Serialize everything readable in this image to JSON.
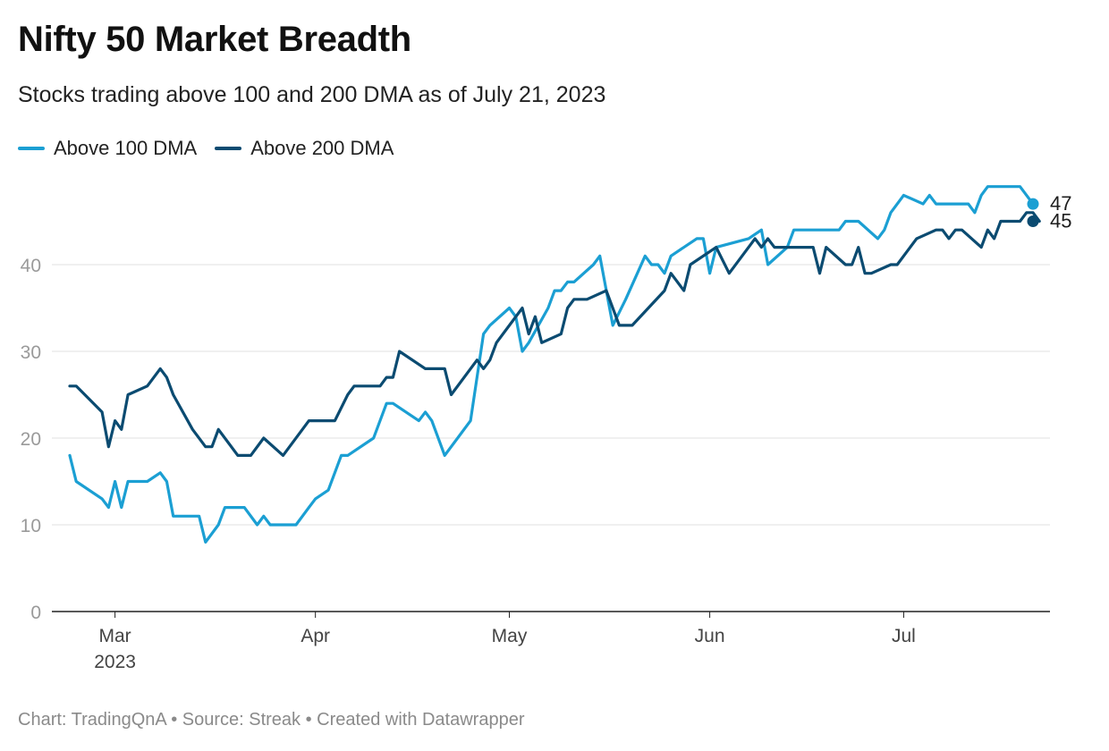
{
  "chart_data": {
    "type": "line",
    "title": "Nifty 50 Market Breadth",
    "subtitle": "Stocks trading above 100 and 200 DMA as of July 21, 2023",
    "footer": "Chart: TradingQnA • Source: Streak • Created with Datawrapper",
    "y_ticks": [
      0,
      10,
      20,
      30,
      40
    ],
    "ylim": [
      0,
      50
    ],
    "x_range": [
      "2023-02-22",
      "2023-07-21"
    ],
    "x_ticks": [
      {
        "date": "2023-03-01",
        "label": "Mar",
        "sublabel": "2023"
      },
      {
        "date": "2023-04-01",
        "label": "Apr",
        "sublabel": ""
      },
      {
        "date": "2023-05-01",
        "label": "May",
        "sublabel": ""
      },
      {
        "date": "2023-06-01",
        "label": "Jun",
        "sublabel": ""
      },
      {
        "date": "2023-07-01",
        "label": "Jul",
        "sublabel": ""
      }
    ],
    "grid": true,
    "legend_position": "top-left",
    "series": [
      {
        "name": "Above 100 DMA",
        "color": "#1b9fd3",
        "end_label": "47",
        "points": [
          [
            "2023-02-22",
            18
          ],
          [
            "2023-02-23",
            15
          ],
          [
            "2023-02-27",
            13
          ],
          [
            "2023-02-28",
            12
          ],
          [
            "2023-03-01",
            15
          ],
          [
            "2023-03-02",
            12
          ],
          [
            "2023-03-03",
            15
          ],
          [
            "2023-03-06",
            15
          ],
          [
            "2023-03-08",
            16
          ],
          [
            "2023-03-09",
            15
          ],
          [
            "2023-03-10",
            11
          ],
          [
            "2023-03-13",
            11
          ],
          [
            "2023-03-14",
            11
          ],
          [
            "2023-03-15",
            8
          ],
          [
            "2023-03-17",
            10
          ],
          [
            "2023-03-18",
            12
          ],
          [
            "2023-03-21",
            12
          ],
          [
            "2023-03-23",
            10
          ],
          [
            "2023-03-24",
            11
          ],
          [
            "2023-03-25",
            10
          ],
          [
            "2023-03-29",
            10
          ],
          [
            "2023-03-30",
            11
          ],
          [
            "2023-03-31",
            12
          ],
          [
            "2023-04-01",
            13
          ],
          [
            "2023-04-03",
            14
          ],
          [
            "2023-04-05",
            18
          ],
          [
            "2023-04-06",
            18
          ],
          [
            "2023-04-10",
            20
          ],
          [
            "2023-04-12",
            24
          ],
          [
            "2023-04-13",
            24
          ],
          [
            "2023-04-17",
            22
          ],
          [
            "2023-04-18",
            23
          ],
          [
            "2023-04-19",
            22
          ],
          [
            "2023-04-21",
            18
          ],
          [
            "2023-04-25",
            22
          ],
          [
            "2023-04-27",
            32
          ],
          [
            "2023-04-28",
            33
          ],
          [
            "2023-05-01",
            35
          ],
          [
            "2023-05-02",
            34
          ],
          [
            "2023-05-03",
            30
          ],
          [
            "2023-05-04",
            31
          ],
          [
            "2023-05-07",
            35
          ],
          [
            "2023-05-08",
            37
          ],
          [
            "2023-05-09",
            37
          ],
          [
            "2023-05-10",
            38
          ],
          [
            "2023-05-11",
            38
          ],
          [
            "2023-05-14",
            40
          ],
          [
            "2023-05-15",
            41
          ],
          [
            "2023-05-17",
            33
          ],
          [
            "2023-05-19",
            36
          ],
          [
            "2023-05-22",
            41
          ],
          [
            "2023-05-23",
            40
          ],
          [
            "2023-05-24",
            40
          ],
          [
            "2023-05-25",
            39
          ],
          [
            "2023-05-26",
            41
          ],
          [
            "2023-05-30",
            43
          ],
          [
            "2023-05-31",
            43
          ],
          [
            "2023-06-01",
            39
          ],
          [
            "2023-06-02",
            42
          ],
          [
            "2023-06-07",
            43
          ],
          [
            "2023-06-09",
            44
          ],
          [
            "2023-06-10",
            40
          ],
          [
            "2023-06-13",
            42
          ],
          [
            "2023-06-14",
            44
          ],
          [
            "2023-06-21",
            44
          ],
          [
            "2023-06-22",
            45
          ],
          [
            "2023-06-24",
            45
          ],
          [
            "2023-06-27",
            43
          ],
          [
            "2023-06-28",
            44
          ],
          [
            "2023-06-29",
            46
          ],
          [
            "2023-07-01",
            48
          ],
          [
            "2023-07-04",
            47
          ],
          [
            "2023-07-05",
            48
          ],
          [
            "2023-07-06",
            47
          ],
          [
            "2023-07-11",
            47
          ],
          [
            "2023-07-12",
            46
          ],
          [
            "2023-07-13",
            48
          ],
          [
            "2023-07-14",
            49
          ],
          [
            "2023-07-19",
            49
          ],
          [
            "2023-07-20",
            48
          ],
          [
            "2023-07-21",
            47
          ]
        ]
      },
      {
        "name": "Above 200 DMA",
        "color": "#0b4b71",
        "end_label": "45",
        "points": [
          [
            "2023-02-22",
            26
          ],
          [
            "2023-02-23",
            26
          ],
          [
            "2023-02-27",
            23
          ],
          [
            "2023-02-28",
            19
          ],
          [
            "2023-03-01",
            22
          ],
          [
            "2023-03-02",
            21
          ],
          [
            "2023-03-03",
            25
          ],
          [
            "2023-03-06",
            26
          ],
          [
            "2023-03-08",
            28
          ],
          [
            "2023-03-09",
            27
          ],
          [
            "2023-03-10",
            25
          ],
          [
            "2023-03-13",
            21
          ],
          [
            "2023-03-15",
            19
          ],
          [
            "2023-03-16",
            19
          ],
          [
            "2023-03-17",
            21
          ],
          [
            "2023-03-20",
            18
          ],
          [
            "2023-03-22",
            18
          ],
          [
            "2023-03-24",
            20
          ],
          [
            "2023-03-27",
            18
          ],
          [
            "2023-03-31",
            22
          ],
          [
            "2023-04-04",
            22
          ],
          [
            "2023-04-06",
            25
          ],
          [
            "2023-04-07",
            26
          ],
          [
            "2023-04-11",
            26
          ],
          [
            "2023-04-12",
            27
          ],
          [
            "2023-04-13",
            27
          ],
          [
            "2023-04-14",
            30
          ],
          [
            "2023-04-18",
            28
          ],
          [
            "2023-04-21",
            28
          ],
          [
            "2023-04-22",
            25
          ],
          [
            "2023-04-26",
            29
          ],
          [
            "2023-04-27",
            28
          ],
          [
            "2023-04-28",
            29
          ],
          [
            "2023-04-29",
            31
          ],
          [
            "2023-05-03",
            35
          ],
          [
            "2023-05-04",
            32
          ],
          [
            "2023-05-05",
            34
          ],
          [
            "2023-05-06",
            31
          ],
          [
            "2023-05-09",
            32
          ],
          [
            "2023-05-10",
            35
          ],
          [
            "2023-05-11",
            36
          ],
          [
            "2023-05-13",
            36
          ],
          [
            "2023-05-16",
            37
          ],
          [
            "2023-05-18",
            33
          ],
          [
            "2023-05-20",
            33
          ],
          [
            "2023-05-25",
            37
          ],
          [
            "2023-05-26",
            39
          ],
          [
            "2023-05-28",
            37
          ],
          [
            "2023-05-29",
            40
          ],
          [
            "2023-06-02",
            42
          ],
          [
            "2023-06-04",
            39
          ],
          [
            "2023-06-08",
            43
          ],
          [
            "2023-06-09",
            42
          ],
          [
            "2023-06-10",
            43
          ],
          [
            "2023-06-11",
            42
          ],
          [
            "2023-06-16",
            42
          ],
          [
            "2023-06-17",
            42
          ],
          [
            "2023-06-18",
            39
          ],
          [
            "2023-06-19",
            42
          ],
          [
            "2023-06-22",
            40
          ],
          [
            "2023-06-23",
            40
          ],
          [
            "2023-06-24",
            42
          ],
          [
            "2023-06-25",
            39
          ],
          [
            "2023-06-26",
            39
          ],
          [
            "2023-06-29",
            40
          ],
          [
            "2023-06-30",
            40
          ],
          [
            "2023-07-03",
            43
          ],
          [
            "2023-07-06",
            44
          ],
          [
            "2023-07-07",
            44
          ],
          [
            "2023-07-08",
            43
          ],
          [
            "2023-07-09",
            44
          ],
          [
            "2023-07-10",
            44
          ],
          [
            "2023-07-13",
            42
          ],
          [
            "2023-07-14",
            44
          ],
          [
            "2023-07-15",
            43
          ],
          [
            "2023-07-16",
            45
          ],
          [
            "2023-07-17",
            45
          ],
          [
            "2023-07-19",
            45
          ],
          [
            "2023-07-20",
            46
          ],
          [
            "2023-07-21",
            46
          ],
          [
            "2023-07-22",
            45
          ]
        ]
      }
    ]
  }
}
